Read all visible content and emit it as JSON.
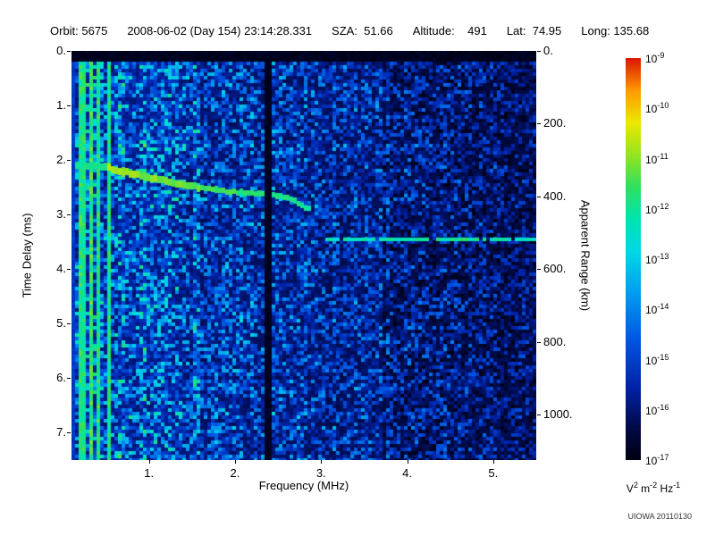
{
  "header": {
    "segments": [
      "Orbit: 5675",
      "2008-06-02 (Day 154) 23:14:28.331",
      "SZA:  51.66",
      "Altitude:    491",
      "Lat:  74.95",
      "Long: 135.68"
    ]
  },
  "watermark": "UIOWA 20110130",
  "colorbar_units": {
    "segments": [
      {
        "base": "V",
        "sup": "2"
      },
      {
        "base": " m",
        "sup": "-2"
      },
      {
        "base": " Hz",
        "sup": "-1"
      }
    ]
  },
  "chart_data": {
    "type": "heatmap",
    "title": "",
    "xlabel": "Frequency (MHz)",
    "ylabel_left": "Time Delay (ms)",
    "ylabel_right": "Apparent Range (km)",
    "xlim_mhz": [
      0.1,
      5.5
    ],
    "ylim_ms": [
      0,
      7.5
    ],
    "x_ticks": [
      {
        "value": 1,
        "label": "1."
      },
      {
        "value": 2,
        "label": "2."
      },
      {
        "value": 3,
        "label": "3."
      },
      {
        "value": 4,
        "label": "4."
      },
      {
        "value": 5,
        "label": "5."
      }
    ],
    "y_ticks_left": [
      {
        "value": 0,
        "label": "0."
      },
      {
        "value": 1,
        "label": "1."
      },
      {
        "value": 2,
        "label": "2."
      },
      {
        "value": 3,
        "label": "3."
      },
      {
        "value": 4,
        "label": "4."
      },
      {
        "value": 5,
        "label": "5."
      },
      {
        "value": 6,
        "label": "6."
      },
      {
        "value": 7,
        "label": "7."
      }
    ],
    "y_ticks_right": [
      {
        "value_km": 0,
        "label": "0."
      },
      {
        "value_km": 200,
        "label": "200."
      },
      {
        "value_km": 400,
        "label": "400."
      },
      {
        "value_km": 600,
        "label": "600."
      },
      {
        "value_km": 800,
        "label": "800."
      },
      {
        "value_km": 1000,
        "label": "1000."
      }
    ],
    "colorbar": {
      "scale": "log",
      "tick_exponents": [
        -9,
        -10,
        -11,
        -12,
        -13,
        -14,
        -15,
        -16,
        -17
      ],
      "top_value": "1e-9",
      "bottom_value": "1e-17"
    },
    "colormap": [
      [
        0.0,
        "#000012"
      ],
      [
        0.08,
        "#000a46"
      ],
      [
        0.18,
        "#0022a8"
      ],
      [
        0.3,
        "#0055e4"
      ],
      [
        0.42,
        "#00a0f0"
      ],
      [
        0.52,
        "#00d8e6"
      ],
      [
        0.6,
        "#00e4b0"
      ],
      [
        0.68,
        "#2ee05e"
      ],
      [
        0.76,
        "#96e41e"
      ],
      [
        0.84,
        "#ece800"
      ],
      [
        0.92,
        "#ff9800"
      ],
      [
        1.0,
        "#dc1400"
      ]
    ],
    "noise_seed": 20110130,
    "features": {
      "description": "Radar sounder ionogram: blue noise background, bright low-frequency plasma harmonic lines, green ionospheric echo trace, horizontal ground echo line, dark attenuation band",
      "top_black_band_ms": 0.22,
      "plasma_harmonic_lines_mhz": [
        0.13,
        0.19,
        0.26,
        0.34,
        0.43,
        0.53
      ],
      "attenuation_band_mhz": [
        2.33,
        2.41
      ],
      "ionospheric_echo_trace": [
        [
          0.15,
          2.08
        ],
        [
          0.32,
          2.1
        ],
        [
          0.5,
          2.12
        ],
        [
          0.72,
          2.22
        ],
        [
          0.95,
          2.3
        ],
        [
          1.2,
          2.38
        ],
        [
          1.5,
          2.48
        ],
        [
          1.8,
          2.55
        ],
        [
          2.1,
          2.6
        ],
        [
          2.28,
          2.62
        ],
        [
          2.5,
          2.66
        ],
        [
          2.7,
          2.74
        ],
        [
          2.88,
          2.92
        ]
      ],
      "ground_echo": {
        "time_delay_ms": 3.45,
        "freq_start_mhz": 3.05,
        "freq_end_mhz": 5.5
      }
    }
  }
}
